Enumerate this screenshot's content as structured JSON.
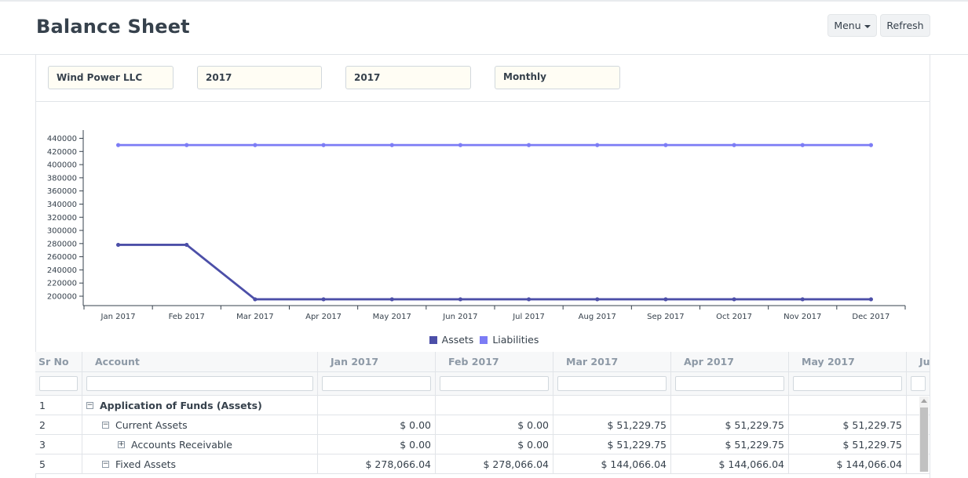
{
  "header": {
    "title": "Balance Sheet",
    "menu_label": "Menu",
    "refresh_label": "Refresh"
  },
  "filters": {
    "company": "Wind Power LLC",
    "from_year": "2017",
    "to_year": "2017",
    "periodicity": "Monthly"
  },
  "chart_data": {
    "type": "line",
    "categories": [
      "Jan 2017",
      "Feb 2017",
      "Mar 2017",
      "Apr 2017",
      "May 2017",
      "Jun 2017",
      "Jul 2017",
      "Aug 2017",
      "Sep 2017",
      "Oct 2017",
      "Nov 2017",
      "Dec 2017"
    ],
    "yticks": [
      200000,
      220000,
      240000,
      260000,
      280000,
      300000,
      320000,
      340000,
      360000,
      380000,
      400000,
      420000,
      440000
    ],
    "ylim": [
      200000,
      440000
    ],
    "legend": "bottom",
    "series": [
      {
        "name": "Assets",
        "color": "#5e64ff",
        "values": [
          278066.04,
          278066.04,
          195295.79,
          195295.79,
          195295.79,
          195295.79,
          195295.79,
          195295.79,
          195295.79,
          195295.79,
          195295.79,
          195295.79
        ]
      },
      {
        "name": "Liabilities",
        "color": "#7575ff",
        "values": [
          429745,
          429745,
          429745,
          429745,
          429745,
          429745,
          429745,
          429745,
          429745,
          429745,
          429745,
          429745
        ]
      }
    ]
  },
  "legend": [
    {
      "label": "Assets",
      "color": "#4c4fa8"
    },
    {
      "label": "Liabilities",
      "color": "#7c7cf5"
    }
  ],
  "grid": {
    "columns": [
      "Sr No",
      "Account",
      "Jan 2017",
      "Feb 2017",
      "Mar 2017",
      "Apr 2017",
      "May 2017",
      "Ju"
    ],
    "rows": [
      {
        "sr": "1",
        "account": "Application of Funds (Assets)",
        "level": 0,
        "toggle": "−",
        "bold": true,
        "values": [
          "",
          "",
          "",
          "",
          ""
        ]
      },
      {
        "sr": "2",
        "account": "Current Assets",
        "level": 1,
        "toggle": "−",
        "bold": false,
        "values": [
          "$ 0.00",
          "$ 0.00",
          "$ 51,229.75",
          "$ 51,229.75",
          "$ 51,229.75"
        ]
      },
      {
        "sr": "3",
        "account": "Accounts Receivable",
        "level": 2,
        "toggle": "+",
        "bold": false,
        "values": [
          "$ 0.00",
          "$ 0.00",
          "$ 51,229.75",
          "$ 51,229.75",
          "$ 51,229.75"
        ]
      },
      {
        "sr": "5",
        "account": "Fixed Assets",
        "level": 1,
        "toggle": "−",
        "bold": false,
        "values": [
          "$ 278,066.04",
          "$ 278,066.04",
          "$ 144,066.04",
          "$ 144,066.04",
          "$ 144,066.04"
        ]
      }
    ]
  }
}
